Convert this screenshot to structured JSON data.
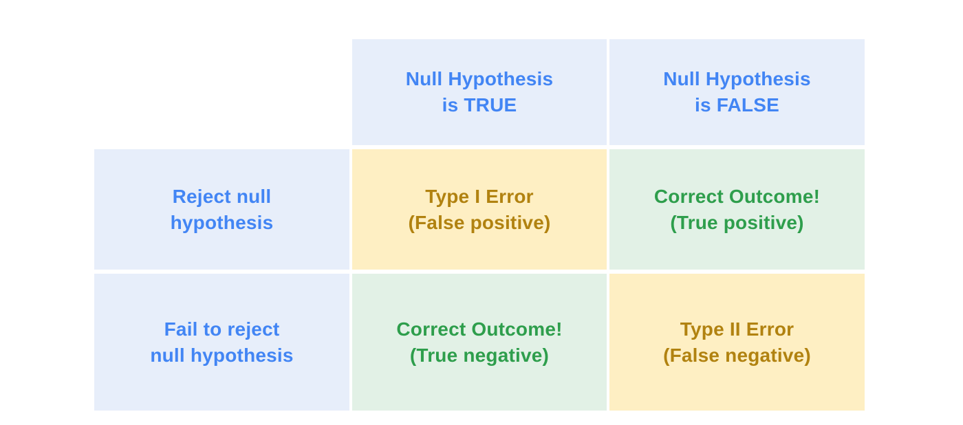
{
  "table": {
    "column_headers": [
      {
        "line1": "Null Hypothesis",
        "line2": "is TRUE",
        "variant": "label"
      },
      {
        "line1": "Null Hypothesis",
        "line2": "is FALSE",
        "variant": "label"
      }
    ],
    "rows": [
      {
        "header": {
          "line1": "Reject null",
          "line2": "hypothesis",
          "variant": "label"
        },
        "cells": [
          {
            "line1": "Type I Error",
            "line2": "(False positive)",
            "variant": "error"
          },
          {
            "line1": "Correct Outcome!",
            "line2": "(True positive)",
            "variant": "correct"
          }
        ]
      },
      {
        "header": {
          "line1": "Fail to reject",
          "line2": "null hypothesis",
          "variant": "label"
        },
        "cells": [
          {
            "line1": "Correct Outcome!",
            "line2": "(True negative)",
            "variant": "correct"
          },
          {
            "line1": "Type II Error",
            "line2": "(False negative)",
            "variant": "error"
          }
        ]
      }
    ]
  },
  "colors": {
    "page_bg": "#ffffff",
    "header_bg": "#e7eefa",
    "header_text": "#4285f4",
    "error_bg": "#feefc3",
    "error_text": "#b18210",
    "correct_bg": "#e2f1e6",
    "correct_text": "#2e9e4c"
  }
}
